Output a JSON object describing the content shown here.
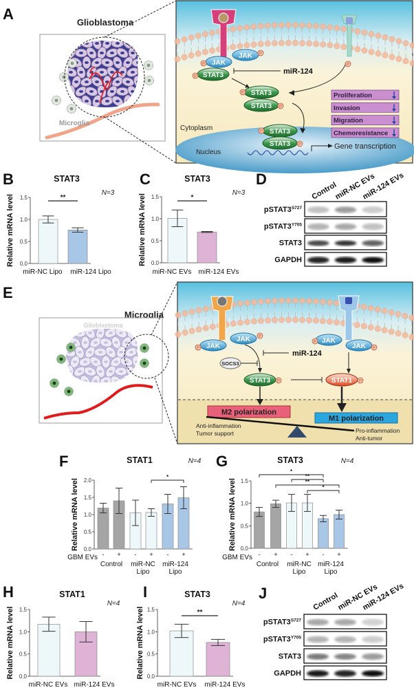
{
  "panel_labels": {
    "a": "A",
    "b": "B",
    "c": "C",
    "d": "D",
    "e": "E",
    "f": "F",
    "g": "G",
    "h": "H",
    "i": "I",
    "j": "J"
  },
  "panel_a": {
    "glioblastoma_label": "Glioblastoma",
    "microglia_label": "Microglia",
    "pathway": {
      "jak": "JAK",
      "stat3": "STAT3",
      "phospho": "P",
      "mir": "miR-124",
      "cytoplasm": "Cytoplasm",
      "nucleus": "Nucleus",
      "gene_transcription": "Gene transcription",
      "outcomes": [
        {
          "label": "Proliferation",
          "direction": "down"
        },
        {
          "label": "Invasion",
          "direction": "down"
        },
        {
          "label": "Migration",
          "direction": "down"
        },
        {
          "label": "Chemoresistance",
          "direction": "down"
        }
      ]
    }
  },
  "panel_e": {
    "microglia_label": "Microglia",
    "glioblastoma_label": "Glioblastoma",
    "pathway": {
      "jak": "JAK",
      "phospho": "P",
      "socs3": "SOCS3",
      "mir": "miR-124",
      "stat3": "STAT3",
      "stat1": "STAT1",
      "m2": "M2 polarization",
      "m1": "M1 polarization",
      "m2_effects": [
        "Anti-inflammation",
        "Tumor support"
      ],
      "m1_effects": [
        "Pro-inflammation",
        "Anti-tumor"
      ]
    }
  },
  "colors": {
    "control": "#a5a5a5",
    "mir_nc": "#eef8fb",
    "mir_124_lipo": "#a8c6e6",
    "mir_124_evs": "#deb3d5",
    "outcome_box": "#c98fcf",
    "m2_box": "#e8607a",
    "m1_box": "#2ba6de"
  },
  "chart_data": [
    {
      "panel": "B",
      "type": "bar",
      "title": "STAT3",
      "n_label": "N=3",
      "ylabel": "Relative mRNA level",
      "ylim": [
        0,
        1.5
      ],
      "yticks": [
        0,
        0.5,
        1.0,
        1.5
      ],
      "categories": [
        "miR-NC Lipo",
        "miR-124 Lipo"
      ],
      "values": [
        1.0,
        0.76
      ],
      "error": [
        0.08,
        0.05
      ],
      "bar_colors": [
        "#eef8fb",
        "#a8c6e6"
      ],
      "significance": [
        {
          "from": 0,
          "to": 1,
          "label": "**"
        }
      ]
    },
    {
      "panel": "C",
      "type": "bar",
      "title": "STAT3",
      "n_label": "N=3",
      "ylabel": "Relative mRNA level",
      "ylim": [
        0,
        1.5
      ],
      "yticks": [
        0,
        0.5,
        1.0,
        1.5
      ],
      "categories": [
        "miR-NC EVs",
        "miR-124 EVs"
      ],
      "values": [
        1.01,
        0.7
      ],
      "error": [
        0.19,
        0.01
      ],
      "bar_colors": [
        "#eef8fb",
        "#deb3d5"
      ],
      "significance": [
        {
          "from": 0,
          "to": 1,
          "label": "*"
        }
      ]
    },
    {
      "panel": "F",
      "type": "bar",
      "title": "STAT1",
      "n_label": "N=4",
      "ylabel": "Relative mRNA level",
      "ylim": [
        0,
        2.0
      ],
      "yticks": [
        0,
        0.5,
        1.0,
        1.5,
        2.0
      ],
      "factor_label": "GBM EVs",
      "factor_levels": [
        "-",
        "+",
        "-",
        "+",
        "-",
        "+"
      ],
      "groups": [
        {
          "line1": "Control",
          "line2": ""
        },
        {
          "line1": "miR-NC",
          "line2": "Lipo"
        },
        {
          "line1": "miR-124",
          "line2": "Lipo"
        }
      ],
      "values": [
        1.19,
        1.4,
        1.05,
        1.06,
        1.31,
        1.49
      ],
      "error": [
        0.14,
        0.37,
        0.37,
        0.11,
        0.28,
        0.32
      ],
      "bar_colors": [
        "#a5a5a5",
        "#a5a5a5",
        "#eef8fb",
        "#eef8fb",
        "#a8c6e6",
        "#a8c6e6"
      ],
      "significance": [
        {
          "from": 3,
          "to": 5,
          "label": "*"
        }
      ]
    },
    {
      "panel": "G",
      "type": "bar",
      "title": "STAT3",
      "n_label": "N=4",
      "ylabel": "Relative mRNA level",
      "ylim": [
        0,
        1.5
      ],
      "yticks": [
        0,
        0.5,
        1.0,
        1.5
      ],
      "factor_label": "GBM EVs",
      "factor_levels": [
        "-",
        "+",
        "-",
        "+",
        "-",
        "+"
      ],
      "groups": [
        {
          "line1": "Control",
          "line2": ""
        },
        {
          "line1": "miR-NC",
          "line2": "Lipo"
        },
        {
          "line1": "miR-124",
          "line2": "Lipo"
        }
      ],
      "values": [
        0.81,
        0.99,
        1.01,
        1.01,
        0.66,
        0.75
      ],
      "error": [
        0.1,
        0.08,
        0.19,
        0.19,
        0.07,
        0.1
      ],
      "bar_colors": [
        "#a5a5a5",
        "#a5a5a5",
        "#eef8fb",
        "#eef8fb",
        "#a8c6e6",
        "#a8c6e6"
      ],
      "significance": [
        {
          "from": 0,
          "to": 4,
          "label": "*"
        },
        {
          "from": 2,
          "to": 4,
          "label": "**"
        },
        {
          "from": 1,
          "to": 5,
          "label": "**"
        },
        {
          "from": 3,
          "to": 5,
          "label": "*"
        }
      ]
    },
    {
      "panel": "H",
      "type": "bar",
      "title": "STAT1",
      "n_label": "N=4",
      "ylabel": "Relative mRNA level",
      "ylim": [
        0,
        1.5
      ],
      "yticks": [
        0,
        0.5,
        1.0,
        1.5
      ],
      "categories": [
        "miR-NC EVs",
        "miR-124 EVs"
      ],
      "values": [
        1.17,
        1.0
      ],
      "error": [
        0.16,
        0.23
      ],
      "bar_colors": [
        "#eef8fb",
        "#deb3d5"
      ],
      "significance": []
    },
    {
      "panel": "I",
      "type": "bar",
      "title": "STAT3",
      "n_label": "N=4",
      "ylabel": "Relative mRNA level",
      "ylim": [
        0,
        1.5
      ],
      "yticks": [
        0,
        0.5,
        1.0,
        1.5
      ],
      "categories": [
        "miR-NC EVs",
        "miR-124 EVs"
      ],
      "values": [
        1.02,
        0.76
      ],
      "error": [
        0.15,
        0.07
      ],
      "bar_colors": [
        "#eef8fb",
        "#deb3d5"
      ],
      "significance": [
        {
          "from": 0,
          "to": 1,
          "label": "**"
        }
      ]
    }
  ],
  "blots": [
    {
      "panel": "D",
      "lanes": [
        "Control",
        "miR-NC EVs",
        "miR-124 EVs"
      ],
      "rows": [
        {
          "label": "pSTAT3",
          "sup": "S727",
          "intensity": [
            0.25,
            0.4,
            0.2
          ]
        },
        {
          "label": "pSTAT3",
          "sup": "Y705",
          "intensity": [
            0.3,
            0.35,
            0.25
          ]
        },
        {
          "label": "STAT3",
          "sup": "",
          "intensity": [
            0.75,
            0.85,
            0.65
          ]
        },
        {
          "label": "GAPDH",
          "sup": "",
          "intensity": [
            0.9,
            0.95,
            1.0
          ]
        }
      ]
    },
    {
      "panel": "J",
      "lanes": [
        "Control",
        "miR-NC EVs",
        "miR-124 EVs"
      ],
      "rows": [
        {
          "label": "pSTAT3",
          "sup": "S727",
          "intensity": [
            0.35,
            0.35,
            0.18
          ]
        },
        {
          "label": "pSTAT3",
          "sup": "Y705",
          "intensity": [
            0.3,
            0.3,
            0.2
          ]
        },
        {
          "label": "STAT3",
          "sup": "",
          "intensity": [
            0.55,
            0.5,
            0.4
          ]
        },
        {
          "label": "GAPDH",
          "sup": "",
          "intensity": [
            0.95,
            0.9,
            1.0
          ]
        }
      ]
    }
  ]
}
